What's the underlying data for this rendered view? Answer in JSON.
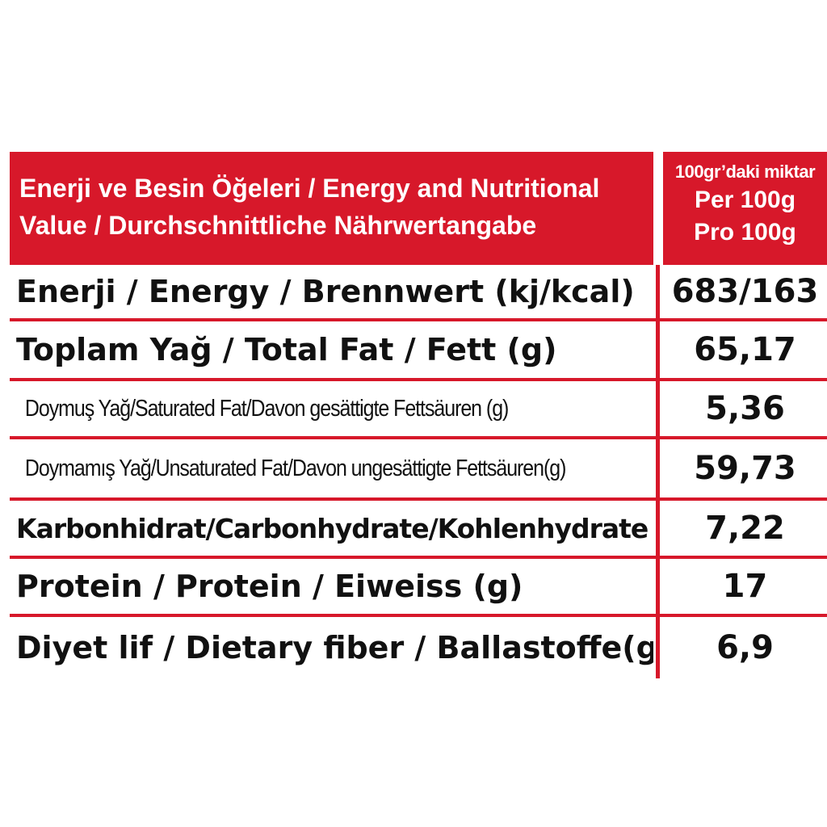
{
  "header": {
    "title_line1": "Enerji ve Besin Öğeleri / Energy and Nutritional",
    "title_line2": "Value / Durchschnittliche Nährwertangabe",
    "amount_label_tr": "100gr’daki miktar",
    "amount_label_en": "Per 100g",
    "amount_label_de": "Pro 100g"
  },
  "rows": [
    {
      "name": "Enerji / Energy / Brennwert (kj/kcal)",
      "value": "683/163"
    },
    {
      "name": "Toplam Yağ / Total Fat / Fett (g)",
      "value": "65,17"
    },
    {
      "name": "Doymuş Yağ/Saturated Fat/Davon gesättigte Fettsäuren (g)",
      "value": "5,36"
    },
    {
      "name": "Doymamış Yağ/Unsaturated Fat/Davon ungesättigte Fettsäuren(g)",
      "value": "59,73"
    },
    {
      "name": "Karbonhidrat/Carbonhydrate/Kohlenhydrate (g)",
      "value": "7,22"
    },
    {
      "name": "Protein / Protein / Eiweiss (g)",
      "value": "17"
    },
    {
      "name": "Diyet lif / Dietary fiber / Ballastoffe(g)",
      "value": "6,9"
    }
  ],
  "colors": {
    "accent": "#d7182a",
    "text": "#111111",
    "background": "#ffffff"
  }
}
